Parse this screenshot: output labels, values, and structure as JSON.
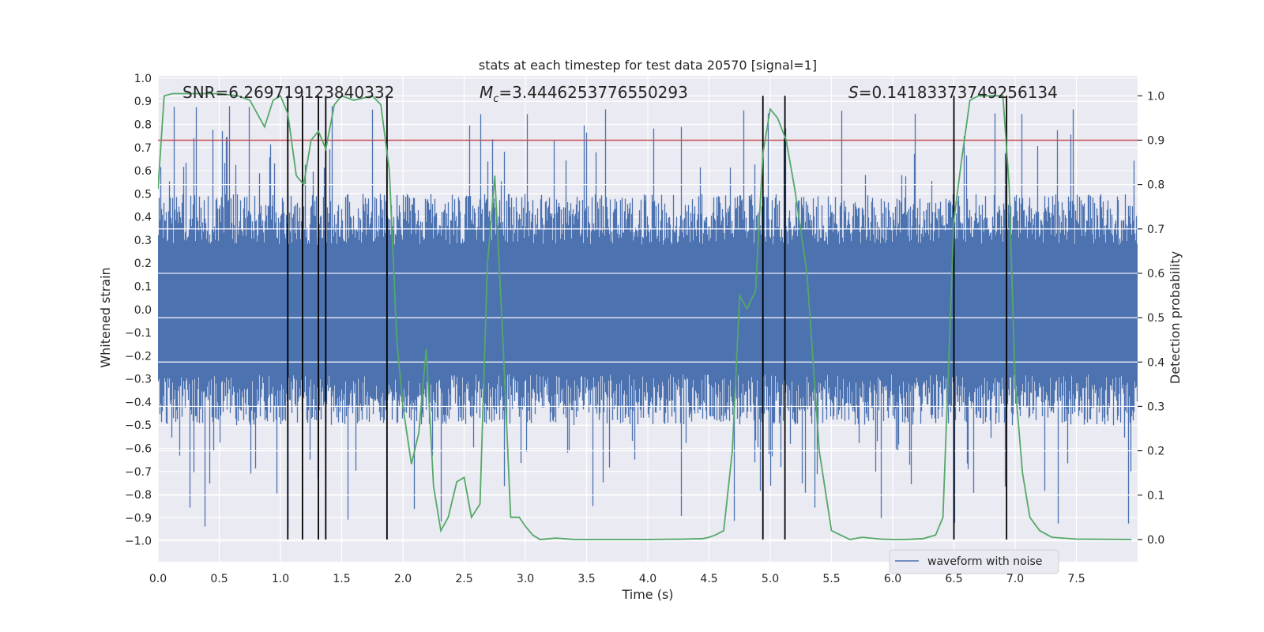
{
  "chart_data": {
    "type": "line",
    "title": "stats at each timestep for test data 20570 [signal=1]",
    "xlabel": "Time (s)",
    "ylabel_left": "Whitened strain",
    "ylabel_right": "Detection probability",
    "xlim": [
      0.0,
      8.0
    ],
    "ylim_left": [
      -1.09,
      1.01
    ],
    "ylim_right": [
      -0.05,
      1.045
    ],
    "x_ticks": [
      "0.0",
      "0.5",
      "1.0",
      "1.5",
      "2.0",
      "2.5",
      "3.0",
      "3.5",
      "4.0",
      "4.5",
      "5.0",
      "5.5",
      "6.0",
      "6.5",
      "7.0",
      "7.5"
    ],
    "x_tick_values": [
      0,
      0.5,
      1,
      1.5,
      2,
      2.5,
      3,
      3.5,
      4,
      4.5,
      5,
      5.5,
      6,
      6.5,
      7,
      7.5
    ],
    "y_left_ticks": [
      "1.0",
      "0.9",
      "0.8",
      "0.7",
      "0.6",
      "0.5",
      "0.4",
      "0.3",
      "0.2",
      "0.1",
      "0.0",
      "−0.1",
      "−0.2",
      "−0.3",
      "−0.4",
      "−0.5",
      "−0.6",
      "−0.7",
      "−0.8",
      "−0.9",
      "−1.0"
    ],
    "y_left_tick_values": [
      1.0,
      0.9,
      0.8,
      0.7,
      0.6,
      0.5,
      0.4,
      0.3,
      0.2,
      0.1,
      0.0,
      -0.1,
      -0.2,
      -0.3,
      -0.4,
      -0.5,
      -0.6,
      -0.7,
      -0.8,
      -0.9,
      -1.0
    ],
    "y_right_ticks": [
      "1.0",
      "0.9",
      "0.8",
      "0.7",
      "0.6",
      "0.5",
      "0.4",
      "0.3",
      "0.2",
      "0.1",
      "0.0"
    ],
    "y_right_tick_values": [
      1.0,
      0.9,
      0.8,
      0.7,
      0.6,
      0.5,
      0.4,
      0.3,
      0.2,
      0.1,
      0.0
    ],
    "annotations": {
      "snr": "SNR=6.269719123840332",
      "mc_symbol": "M",
      "mc_sub": "c",
      "mc_value": "=3.4446253776550293",
      "s_symbol": "S",
      "s_value": "=0.14183373749256134"
    },
    "threshold": {
      "value": 0.9,
      "axis": "right",
      "color": "#c44e52"
    },
    "vertical_lines_x": [
      1.06,
      1.18,
      1.31,
      1.37,
      1.87,
      4.94,
      5.12,
      6.5,
      6.93
    ],
    "legend": {
      "label": "waveform with noise",
      "position": "lower-right"
    },
    "waveform": {
      "name": "waveform with noise",
      "color": "#4c72b0",
      "note": "dense noisy strain; mostly within ±0.45 with frequent spikes to about ±0.85",
      "peak_positive_x": [
        0.13,
        0.31,
        0.58,
        0.74,
        1.42,
        1.75,
        2.63,
        3.01,
        3.65,
        4.78,
        4.98,
        5.58,
        6.18,
        6.83,
        7.05,
        7.47
      ],
      "peak_negative_x": [
        0.26,
        0.38,
        1.06,
        1.55,
        2.09,
        2.31,
        3.55,
        4.27,
        4.7,
        5.36,
        5.9,
        6.5,
        7.35,
        7.92
      ]
    },
    "series": [
      {
        "name": "Detection probability",
        "axis": "right",
        "color": "#55a868",
        "x": [
          0.0,
          0.05,
          0.12,
          0.3,
          0.5,
          0.65,
          0.75,
          0.87,
          0.94,
          1.0,
          1.06,
          1.13,
          1.19,
          1.25,
          1.31,
          1.37,
          1.44,
          1.5,
          1.6,
          1.75,
          1.82,
          1.89,
          1.95,
          2.0,
          2.07,
          2.13,
          2.19,
          2.25,
          2.31,
          2.37,
          2.44,
          2.5,
          2.56,
          2.63,
          2.69,
          2.75,
          2.82,
          2.88,
          2.95,
          3.0,
          3.06,
          3.12,
          3.25,
          3.4,
          3.7,
          4.0,
          4.3,
          4.45,
          4.5,
          4.55,
          4.62,
          4.69,
          4.75,
          4.81,
          4.88,
          4.94,
          5.0,
          5.06,
          5.13,
          5.2,
          5.3,
          5.4,
          5.5,
          5.65,
          5.75,
          5.9,
          6.0,
          6.1,
          6.25,
          6.35,
          6.41,
          6.5,
          6.56,
          6.63,
          6.7,
          6.8,
          6.9,
          6.95,
          7.0,
          7.06,
          7.12,
          7.2,
          7.3,
          7.5,
          7.95
        ],
        "values": [
          0.79,
          1.0,
          1.005,
          1.005,
          1.005,
          1.0,
          0.99,
          0.93,
          0.99,
          1.0,
          0.96,
          0.82,
          0.8,
          0.9,
          0.92,
          0.88,
          0.98,
          1.0,
          0.99,
          1.0,
          0.98,
          0.83,
          0.45,
          0.3,
          0.17,
          0.24,
          0.43,
          0.12,
          0.02,
          0.05,
          0.13,
          0.14,
          0.05,
          0.08,
          0.62,
          0.82,
          0.43,
          0.05,
          0.05,
          0.03,
          0.01,
          0.0,
          0.003,
          0.0,
          0.0,
          0.0,
          0.001,
          0.002,
          0.005,
          0.01,
          0.02,
          0.2,
          0.55,
          0.52,
          0.56,
          0.87,
          0.97,
          0.95,
          0.9,
          0.79,
          0.6,
          0.2,
          0.02,
          0.0,
          0.005,
          0.001,
          0.0,
          0.0,
          0.002,
          0.01,
          0.05,
          0.72,
          0.85,
          0.99,
          1.0,
          1.0,
          1.0,
          0.8,
          0.35,
          0.15,
          0.05,
          0.02,
          0.005,
          0.001,
          0.0
        ]
      }
    ]
  }
}
